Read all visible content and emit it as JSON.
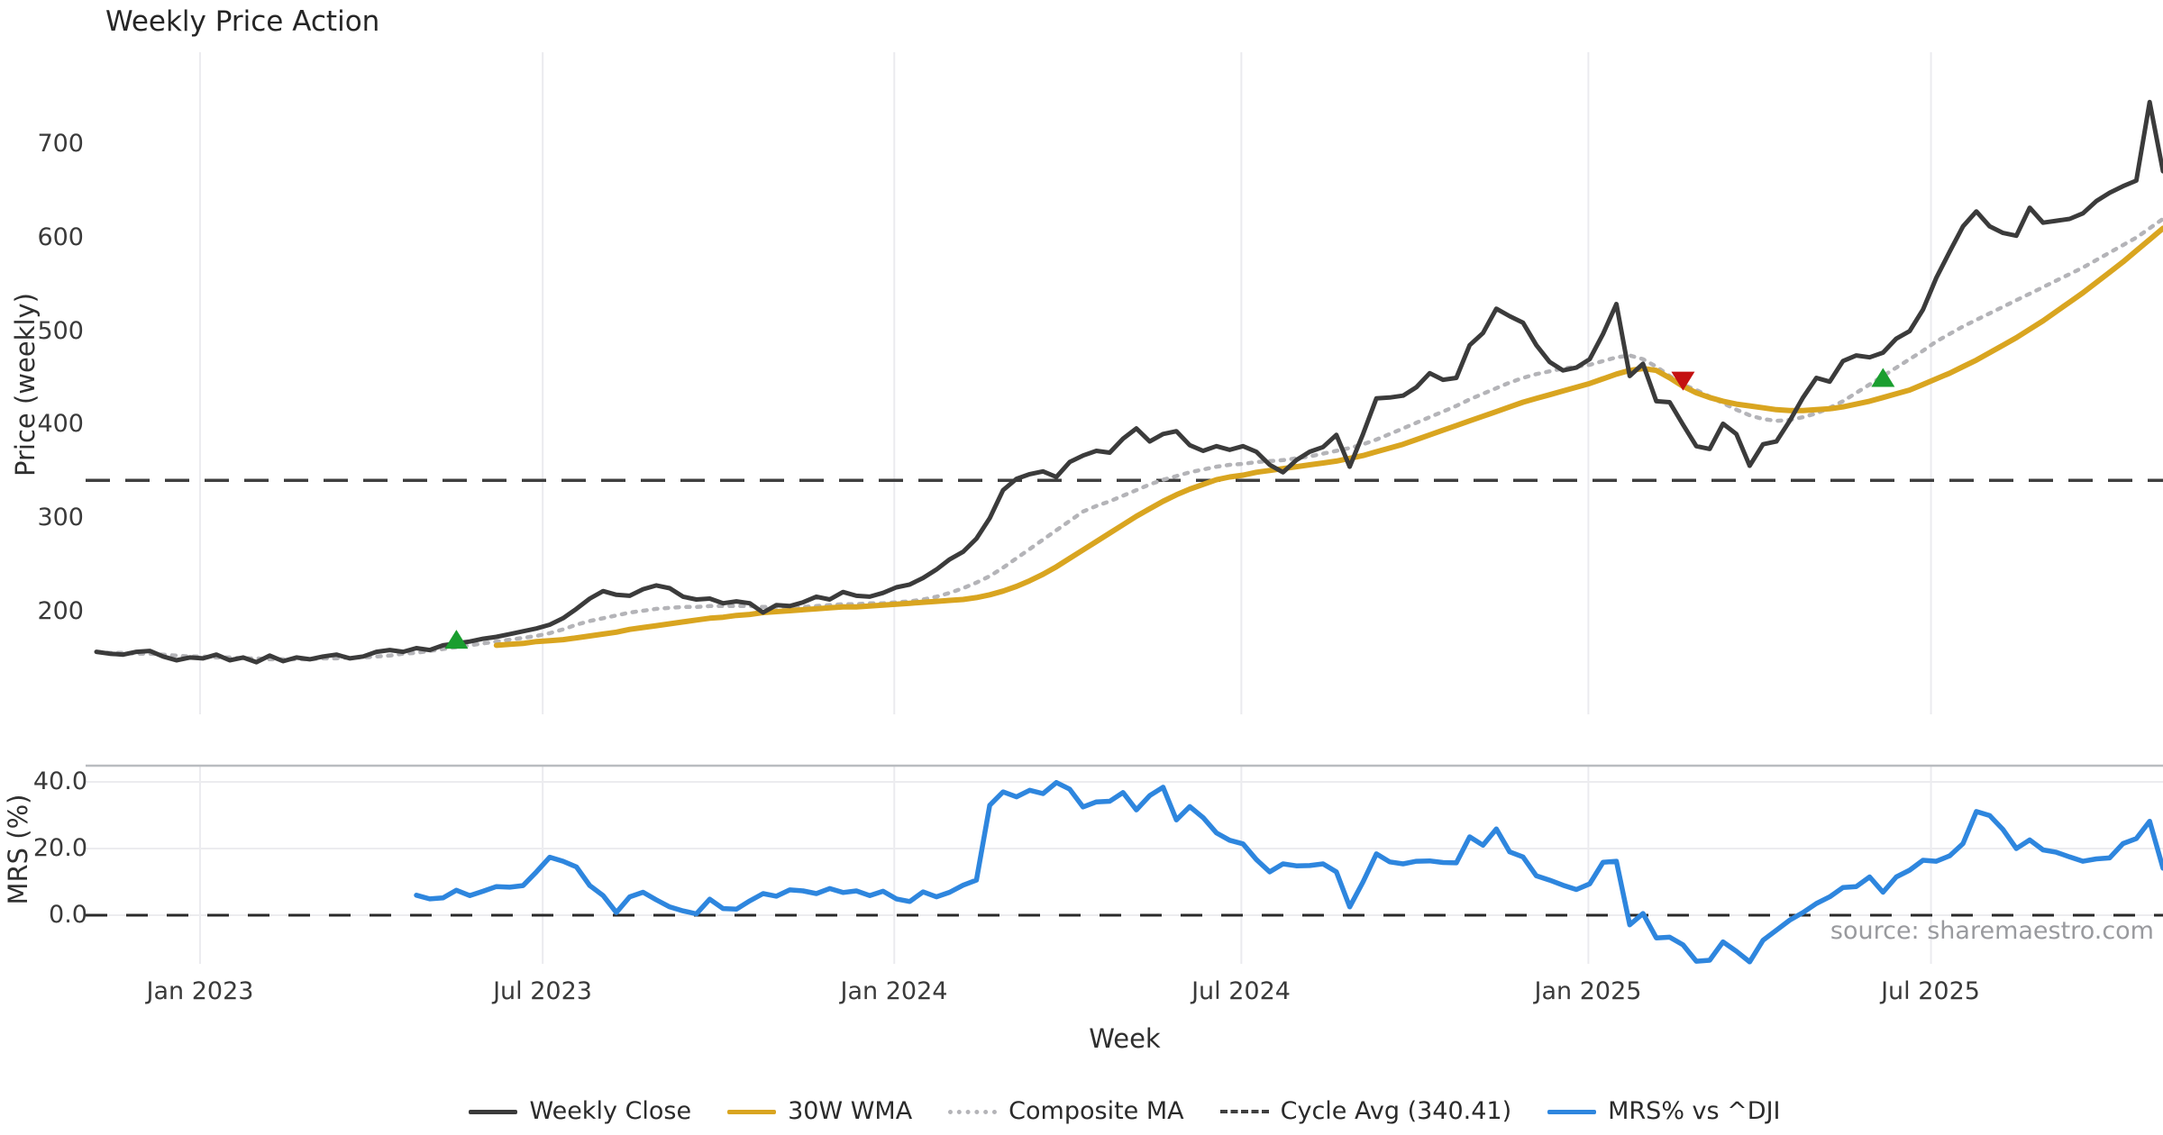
{
  "title": "Weekly Price Action",
  "price_panel": {
    "axis_label": "Price (weekly)",
    "ticks": [
      "700",
      "600",
      "500",
      "400",
      "300",
      "200"
    ]
  },
  "mrs_panel": {
    "axis_label": "MRS (%)",
    "ticks": [
      "40.0",
      "20.0",
      "0.0"
    ]
  },
  "x_axis": {
    "label": "Week",
    "ticks": [
      "Jan 2023",
      "Jul 2023",
      "Jan 2024",
      "Jul 2024",
      "Jan 2025",
      "Jul 2025"
    ]
  },
  "source": "source: sharemaestro.com",
  "legend": [
    {
      "label": "Weekly Close",
      "color": "#3b3b3b",
      "style": "solid"
    },
    {
      "label": "30W WMA",
      "color": "#d9a520",
      "style": "solid"
    },
    {
      "label": "Composite MA",
      "color": "#b4b4b8",
      "style": "dotted"
    },
    {
      "label": "Cycle Avg (340.41)",
      "color": "#3f3f3f",
      "style": "dashed"
    },
    {
      "label": "MRS% vs ^DJI",
      "color": "#2e86de",
      "style": "solid"
    }
  ],
  "chart_data": {
    "type": "line",
    "x_unit": "week_index",
    "x_tick_labels": [
      "Jan 2023",
      "Jul 2023",
      "Jan 2024",
      "Jul 2024",
      "Jan 2025",
      "Jul 2025"
    ],
    "x_tick_week_index": [
      7.77,
      33.47,
      59.84,
      85.87,
      111.9,
      137.6
    ],
    "price_axis": {
      "tick_values": [
        200,
        300,
        400,
        500,
        600,
        700
      ],
      "approx_range": [
        110,
        768
      ]
    },
    "mrs_axis": {
      "tick_values": [
        0.0,
        20.0,
        40.0
      ],
      "approx_range": [
        -16,
        45
      ],
      "zero_line_dashed": true
    },
    "cycle_avg": 340.41,
    "series": [
      {
        "name": "Weekly Close",
        "panel": "price",
        "color": "#3b3b3b",
        "style": "solid",
        "start_index": 0,
        "values": [
          157,
          155,
          154,
          157,
          158,
          152,
          148,
          151,
          150,
          154,
          148,
          151,
          146,
          153,
          147,
          151,
          149,
          152,
          154,
          150,
          152,
          157,
          159,
          157,
          161,
          159,
          164,
          166,
          168,
          171,
          173,
          176,
          179,
          182,
          186,
          193,
          203,
          214,
          222,
          218,
          217,
          224,
          228,
          225,
          216,
          213,
          214,
          209,
          211,
          209,
          199,
          207,
          206,
          210,
          216,
          213,
          221,
          217,
          216,
          220,
          226,
          229,
          236,
          245,
          256,
          264,
          278,
          300,
          330,
          342,
          347,
          350,
          344,
          360,
          367,
          372,
          370,
          385,
          396,
          382,
          390,
          393,
          378,
          372,
          377,
          373,
          377,
          371,
          357,
          349,
          362,
          371,
          376,
          389,
          355,
          390,
          428,
          429,
          431,
          440,
          455,
          448,
          450,
          485,
          498,
          524,
          516,
          509,
          485,
          467,
          458,
          461,
          470,
          497,
          529,
          452,
          465,
          425,
          424,
          400,
          377,
          374,
          401,
          390,
          356,
          379,
          382,
          404,
          429,
          450,
          446,
          468,
          474,
          472,
          477,
          492,
          500,
          523,
          557,
          585,
          612,
          628,
          612,
          605,
          602,
          632,
          616,
          618,
          620,
          626,
          639,
          648,
          655,
          661,
          745,
          671
        ]
      },
      {
        "name": "30W WMA",
        "panel": "price",
        "color": "#d9a520",
        "style": "solid",
        "start_index": 30,
        "values": [
          164,
          165,
          166,
          168,
          169,
          170,
          172,
          174,
          176,
          178,
          181,
          183,
          185,
          187,
          189,
          191,
          193,
          194,
          196,
          197,
          199,
          200,
          201,
          202,
          203,
          204,
          205,
          205,
          206,
          207,
          208,
          209,
          210,
          211,
          212,
          213,
          215,
          218,
          222,
          227,
          233,
          240,
          248,
          257,
          266,
          275,
          284,
          293,
          302,
          310,
          318,
          325,
          331,
          336,
          341,
          344,
          346,
          349,
          351,
          353,
          355,
          357,
          359,
          361,
          364,
          367,
          371,
          375,
          379,
          384,
          389,
          394,
          399,
          404,
          409,
          414,
          419,
          424,
          428,
          432,
          436,
          440,
          444,
          449,
          454,
          458,
          460,
          458,
          450,
          441,
          434,
          429,
          425,
          422,
          420,
          418,
          416,
          415,
          415,
          416,
          417,
          419,
          422,
          425,
          429,
          433,
          437,
          443,
          449,
          455,
          462,
          469,
          477,
          485,
          493,
          502,
          511,
          521,
          531,
          541,
          552,
          563,
          574,
          586,
          598,
          610
        ]
      },
      {
        "name": "Composite MA",
        "panel": "price",
        "color": "#b4b4b8",
        "style": "dotted",
        "start_index": 0,
        "values": [
          157,
          156,
          156,
          155,
          155,
          154,
          153,
          152,
          152,
          151,
          151,
          150,
          150,
          149,
          149,
          149,
          149,
          150,
          150,
          151,
          151,
          152,
          153,
          155,
          156,
          158,
          160,
          162,
          164,
          166,
          168,
          170,
          172,
          174,
          177,
          181,
          186,
          190,
          193,
          196,
          199,
          201,
          203,
          204,
          205,
          205,
          206,
          206,
          206,
          206,
          205,
          205,
          205,
          205,
          206,
          207,
          208,
          208,
          209,
          209,
          210,
          211,
          213,
          216,
          220,
          225,
          231,
          238,
          247,
          257,
          267,
          277,
          287,
          297,
          307,
          313,
          318,
          324,
          330,
          336,
          341,
          345,
          349,
          352,
          355,
          357,
          358,
          360,
          361,
          362,
          364,
          366,
          369,
          372,
          375,
          379,
          384,
          390,
          396,
          402,
          408,
          414,
          420,
          427,
          433,
          439,
          445,
          450,
          454,
          457,
          460,
          462,
          464,
          468,
          472,
          474,
          470,
          462,
          452,
          443,
          437,
          430,
          423,
          416,
          410,
          406,
          404,
          405,
          408,
          412,
          418,
          425,
          434,
          443,
          452,
          461,
          470,
          479,
          489,
          497,
          505,
          512,
          519,
          526,
          533,
          540,
          547,
          554,
          561,
          568,
          576,
          584,
          592,
          600,
          610,
          620
        ]
      },
      {
        "name": "MRS% vs ^DJI",
        "panel": "mrs",
        "color": "#2e86de",
        "style": "solid",
        "start_index": 24,
        "values": [
          6.0,
          4.9,
          5.2,
          7.5,
          5.9,
          7.2,
          8.6,
          8.4,
          8.9,
          13.0,
          17.4,
          16.2,
          14.5,
          8.9,
          5.9,
          0.8,
          5.5,
          6.9,
          4.6,
          2.5,
          1.3,
          0.4,
          4.8,
          2.0,
          1.8,
          4.3,
          6.5,
          5.7,
          7.6,
          7.3,
          6.5,
          8.0,
          6.8,
          7.3,
          5.9,
          7.2,
          4.9,
          4.1,
          7.0,
          5.5,
          6.9,
          9.0,
          10.5,
          33.0,
          37.0,
          35.5,
          37.5,
          36.5,
          39.8,
          37.8,
          32.5,
          34.0,
          34.2,
          36.8,
          31.6,
          35.9,
          38.4,
          28.6,
          32.6,
          29.3,
          24.7,
          22.5,
          21.4,
          16.7,
          13.0,
          15.4,
          14.8,
          14.9,
          15.4,
          13.0,
          2.5,
          10.0,
          18.4,
          16.0,
          15.4,
          16.2,
          16.3,
          15.8,
          15.7,
          23.5,
          21.0,
          25.9,
          19.0,
          17.5,
          11.8,
          10.5,
          9.0,
          7.7,
          9.4,
          15.9,
          16.2,
          -2.9,
          0.5,
          -6.8,
          -6.6,
          -8.9,
          -13.8,
          -13.5,
          -8.0,
          -10.8,
          -14.0,
          -7.5,
          -4.5,
          -1.5,
          0.8,
          3.5,
          5.5,
          8.3,
          8.6,
          11.5,
          6.9,
          11.5,
          13.5,
          16.5,
          16.2,
          17.8,
          21.5,
          31.1,
          29.9,
          25.7,
          20.0,
          22.6,
          19.6,
          18.9,
          17.5,
          16.2,
          16.9,
          17.2,
          21.5,
          23.0,
          28.2,
          14.1
        ]
      }
    ],
    "signals": {
      "buy_markers": [
        {
          "week_index": 27,
          "price": 170
        },
        {
          "week_index": 134,
          "price": 450
        }
      ],
      "sell_markers": [
        {
          "week_index": 119,
          "price": 447
        }
      ],
      "buy_color": "#1a9e2f",
      "sell_color": "#c41111"
    },
    "grid": {
      "vertical": true,
      "horizontal_mrs_panel": true,
      "color": "#ebebef"
    }
  }
}
